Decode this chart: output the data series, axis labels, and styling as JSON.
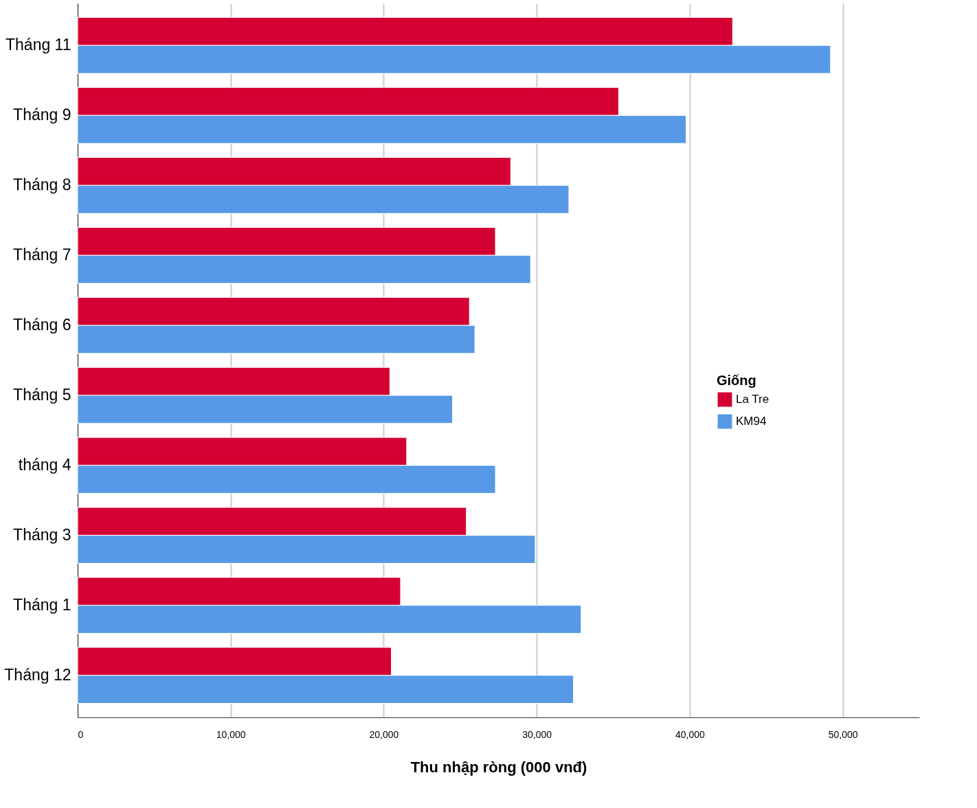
{
  "chart_data": {
    "type": "bar",
    "orientation": "horizontal",
    "xlabel": "Thu nhập ròng (000 vnđ)",
    "legend_title": "Giống",
    "legend": "right",
    "grid": "x",
    "categories": [
      "Tháng 11",
      "Tháng 9",
      "Tháng 8",
      "Tháng 7",
      "Tháng 6",
      "Tháng 5",
      "tháng 4",
      "Tháng 3",
      "Tháng 1",
      "Tháng 12"
    ],
    "series": [
      {
        "name": "La Tre",
        "color": "#d50032",
        "values": [
          42800,
          35350,
          28300,
          27300,
          25600,
          20400,
          21500,
          25400,
          21100,
          20500
        ]
      },
      {
        "name": "KM94",
        "color": "#5799e6",
        "values": [
          49200,
          39760,
          32100,
          29600,
          25960,
          24500,
          27300,
          29900,
          32900,
          32400
        ]
      }
    ],
    "xlim": [
      0,
      55000
    ],
    "xticks": [
      {
        "value": 0,
        "label": "0"
      },
      {
        "value": 10000,
        "label": "10,000"
      },
      {
        "value": 20000,
        "label": "20,000"
      },
      {
        "value": 30000,
        "label": "30,000"
      },
      {
        "value": 40000,
        "label": "40,000"
      },
      {
        "value": 50000,
        "label": "50,000"
      }
    ]
  }
}
